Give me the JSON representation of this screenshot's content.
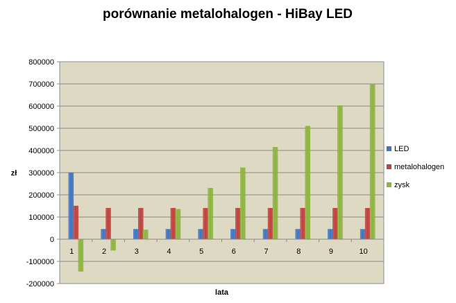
{
  "chart_data": {
    "type": "bar",
    "title": "porównanie metalohalogen - HiBay LED",
    "xlabel": "lata",
    "ylabel": "zł",
    "ylim": [
      -200000,
      800000
    ],
    "ytick_step": 100000,
    "categories": [
      "1",
      "2",
      "3",
      "4",
      "5",
      "6",
      "7",
      "8",
      "9",
      "10"
    ],
    "series": [
      {
        "name": "LED",
        "color": "#3f74c4",
        "values": [
          300000,
          45000,
          45000,
          45000,
          45000,
          45000,
          45000,
          45000,
          45000,
          45000
        ]
      },
      {
        "name": "metalohalogen",
        "color": "#c0403d",
        "values": [
          150000,
          140000,
          140000,
          140000,
          140000,
          140000,
          140000,
          140000,
          140000,
          140000
        ]
      },
      {
        "name": "zysk",
        "color": "#8db43e",
        "values": [
          -145000,
          -50000,
          42000,
          135000,
          230000,
          322000,
          415000,
          510000,
          602000,
          697000
        ]
      }
    ],
    "grid": true,
    "legend": "right",
    "plot_background": "#ddd9c3"
  }
}
